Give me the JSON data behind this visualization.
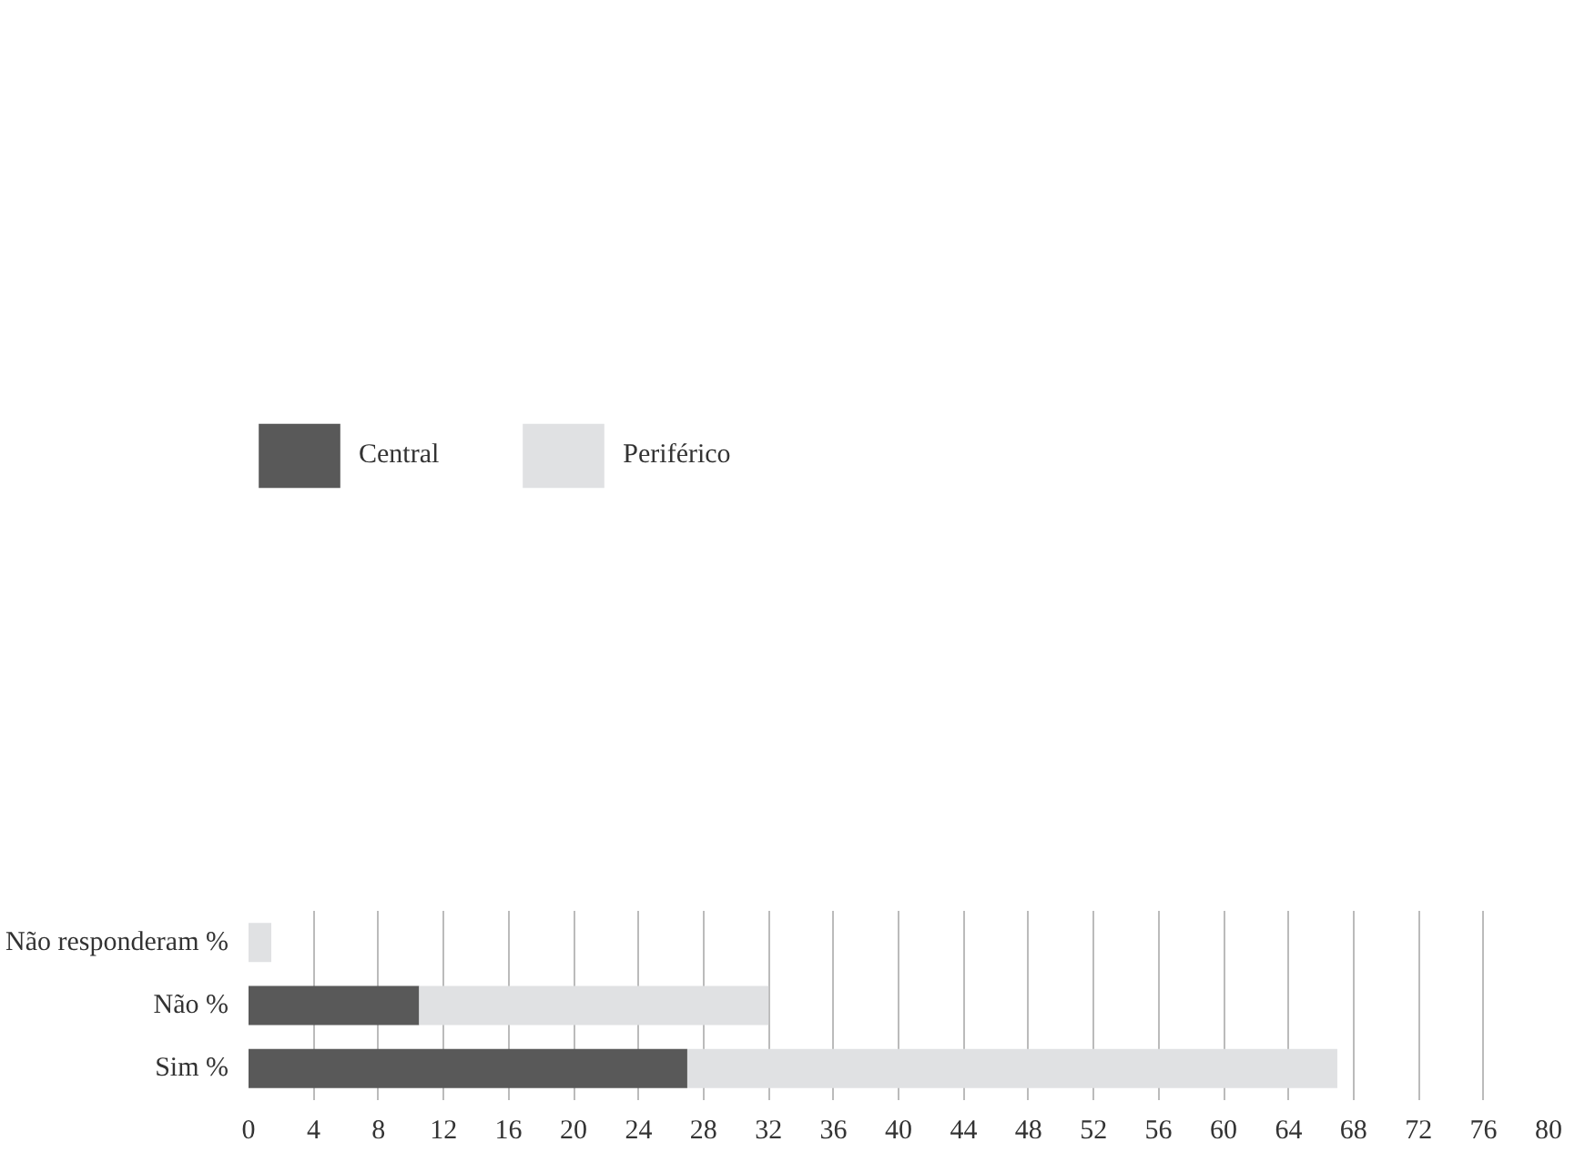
{
  "chart_data": {
    "type": "bar",
    "orientation": "horizontal",
    "stacked": true,
    "categories": [
      "Não responderam %",
      "Não %",
      "Sim %"
    ],
    "series": [
      {
        "name": "Central",
        "color": "#595959",
        "values": [
          0,
          10.5,
          27
        ]
      },
      {
        "name": "Periférico",
        "color": "#e0e1e3",
        "values": [
          1.4,
          21.5,
          40
        ]
      }
    ],
    "xlim": [
      0,
      80
    ],
    "xticks": [
      0,
      4,
      8,
      12,
      16,
      20,
      24,
      28,
      32,
      36,
      40,
      44,
      48,
      52,
      56,
      60,
      64,
      68,
      72,
      76,
      80
    ],
    "grid": "x",
    "legend": "top left"
  }
}
